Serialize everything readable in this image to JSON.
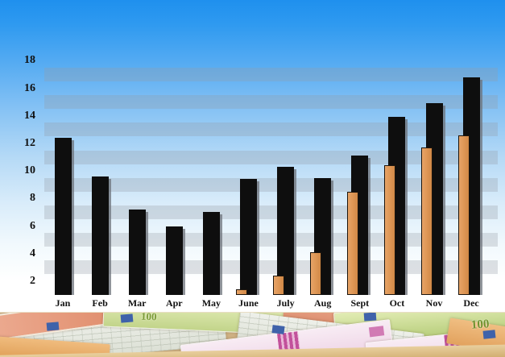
{
  "chart_data": {
    "type": "bar",
    "title": "",
    "xlabel": "",
    "ylabel": "",
    "categories": [
      "Jan",
      "Feb",
      "Mar",
      "Apr",
      "May",
      "June",
      "July",
      "Aug",
      "Sept",
      "Oct",
      "Nov",
      "Dec"
    ],
    "series": [
      {
        "name": "black-bars",
        "color": "#0e0e0e",
        "values": [
          12.4,
          9.6,
          7.2,
          6.0,
          7.0,
          9.4,
          10.3,
          9.5,
          11.1,
          13.9,
          14.9,
          16.8
        ]
      },
      {
        "name": "orange-bars",
        "color": "#dd9554",
        "values": [
          null,
          null,
          null,
          null,
          null,
          1.4,
          2.4,
          4.1,
          8.5,
          10.4,
          11.7,
          12.6
        ]
      }
    ],
    "y_ticks": [
      2,
      4,
      6,
      8,
      10,
      12,
      14,
      16,
      18
    ],
    "ylim": [
      1,
      19
    ],
    "grid": "horizontal-stripes",
    "legend_position": "none"
  },
  "decor": {
    "sky_top_color": "#2196f2",
    "sky_bottom_color": "#ffffff",
    "stripe_color": "rgba(150,156,164,0.30)",
    "bar_shadow_color": "rgba(108,114,122,0.75)",
    "banknotes": {
      "labels": [
        "100",
        "100"
      ],
      "colors": {
        "green_note": "#c9d997",
        "pink_note": "#f3dcec",
        "magenta_detail": "#c2519b",
        "gray_note": "#e7e9e3",
        "orange_note": "#e9b36e",
        "red_note": "#e59b83",
        "eu_flag_patch": "#3f62aa",
        "tan_base": "#cfb184"
      }
    }
  }
}
